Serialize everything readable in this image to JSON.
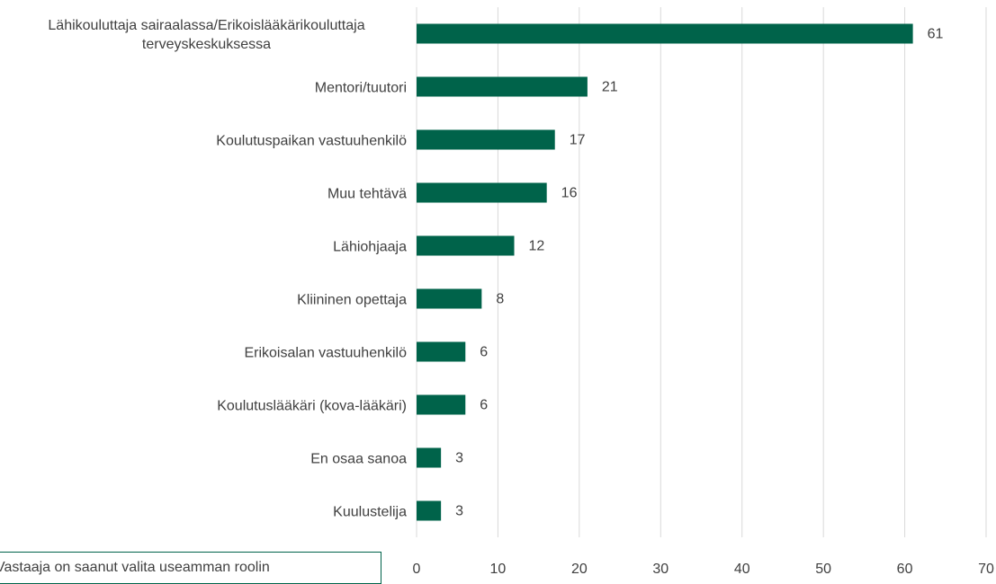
{
  "chart_data": {
    "type": "bar",
    "orientation": "horizontal",
    "categories": [
      "Lähikouluttaja sairaalassa/Erikoislääkärikouluttaja terveyskeskuksessa",
      "Mentori/tuutori",
      "Koulutuspaikan vastuuhenkilö",
      "Muu tehtävä",
      "Lähiohjaaja",
      "Kliininen opettaja",
      "Erikoisalan vastuuhenkilö",
      "Koulutuslääkäri (kova-lääkäri)",
      "En osaa sanoa",
      "Kuulustelija"
    ],
    "values": [
      61,
      21,
      17,
      16,
      12,
      8,
      6,
      6,
      3,
      3
    ],
    "color": "#00634a",
    "xlim": [
      0,
      70
    ],
    "xticks": [
      0,
      10,
      20,
      30,
      40,
      50,
      60,
      70
    ],
    "grid": true,
    "annotation": "Vastaaja on saanut valita useamman roolin"
  }
}
